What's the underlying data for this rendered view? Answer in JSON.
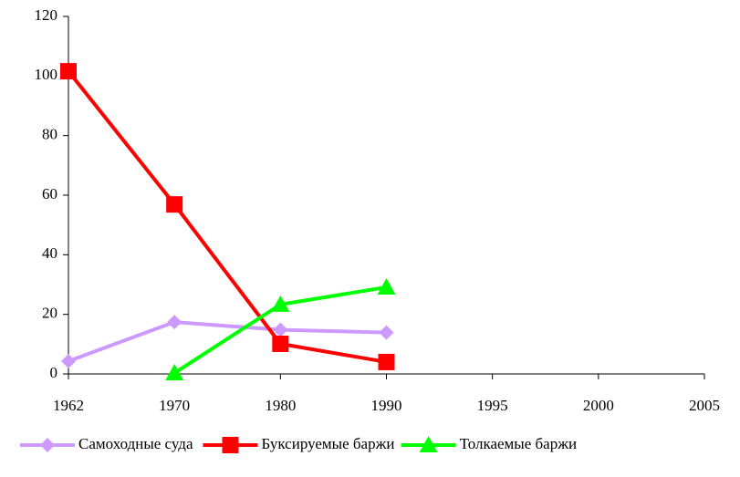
{
  "chart_data": {
    "type": "line",
    "categories": [
      "1962",
      "1970",
      "1980",
      "1990",
      "1995",
      "2000",
      "2005"
    ],
    "series": [
      {
        "name": "Самоходные суда",
        "color": "#cc99ff",
        "marker": "diamond",
        "values": [
          4.3,
          17.4,
          14.8,
          13.9,
          null,
          null,
          null
        ]
      },
      {
        "name": "Буксируемые баржи",
        "color": "#ff0000",
        "marker": "square",
        "values": [
          101.6,
          56.9,
          10.1,
          4,
          null,
          null,
          null
        ]
      },
      {
        "name": "Толкаемые баржи",
        "color": "#00ff00",
        "marker": "triangle",
        "values": [
          null,
          0.3,
          23.3,
          29.1,
          null,
          null,
          null
        ]
      }
    ],
    "ylim": [
      0,
      120
    ],
    "yticks": [
      0,
      20,
      40,
      60,
      80,
      100,
      120
    ],
    "legend": "bottom"
  }
}
